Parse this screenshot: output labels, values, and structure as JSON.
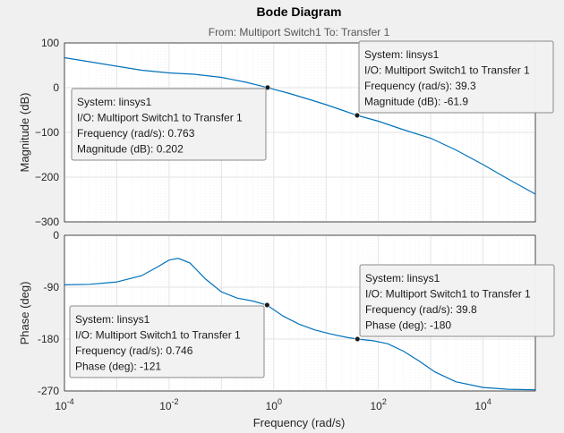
{
  "colors": {
    "curve": "#0072BD",
    "background": "#f0f0f0",
    "axes": "#ffffff"
  },
  "chart_data": {
    "type": "line",
    "title": "Bode Diagram",
    "subtitle": "From: Multiport Switch1  To: Transfer 1",
    "xlabel": "Frequency  (rad/s)",
    "xscale": "log",
    "xlim": [
      0.0001,
      100000
    ],
    "xticks": [
      -4,
      -2,
      0,
      2,
      4
    ],
    "grid": true,
    "plots": [
      {
        "name": "magnitude",
        "ylabel": "Magnitude (dB)",
        "ylim": [
          -300,
          100
        ],
        "yticks": [
          100,
          0,
          -100,
          -200,
          -300
        ],
        "ytick_labels": [
          "100",
          "0",
          "−100",
          "−200",
          "−300"
        ],
        "points": [
          [
            0.0001,
            67
          ],
          [
            0.0003,
            58
          ],
          [
            0.001,
            48
          ],
          [
            0.003,
            39
          ],
          [
            0.01,
            33
          ],
          [
            0.03,
            30
          ],
          [
            0.1,
            23
          ],
          [
            0.3,
            12
          ],
          [
            0.763,
            0.202
          ],
          [
            2,
            -13
          ],
          [
            5,
            -27
          ],
          [
            10,
            -38
          ],
          [
            20,
            -50
          ],
          [
            39.3,
            -61.9
          ],
          [
            100,
            -75
          ],
          [
            300,
            -94
          ],
          [
            1000,
            -113
          ],
          [
            3000,
            -139
          ],
          [
            10000,
            -172
          ],
          [
            30000,
            -204
          ],
          [
            100000,
            -238
          ]
        ]
      },
      {
        "name": "phase",
        "ylabel": "Phase (deg)",
        "ylim": [
          -270,
          0
        ],
        "yticks": [
          0,
          -90,
          -180,
          -270
        ],
        "ytick_labels": [
          "0",
          "-90",
          "-180",
          "-270"
        ],
        "points": [
          [
            0.0001,
            -86
          ],
          [
            0.0003,
            -85
          ],
          [
            0.001,
            -81
          ],
          [
            0.003,
            -70
          ],
          [
            0.006,
            -55
          ],
          [
            0.01,
            -43
          ],
          [
            0.015,
            -40
          ],
          [
            0.025,
            -48
          ],
          [
            0.05,
            -76
          ],
          [
            0.1,
            -98
          ],
          [
            0.2,
            -109
          ],
          [
            0.4,
            -114
          ],
          [
            0.746,
            -121
          ],
          [
            1.5,
            -140
          ],
          [
            3,
            -154
          ],
          [
            6,
            -164
          ],
          [
            12,
            -171
          ],
          [
            25,
            -177
          ],
          [
            39.8,
            -180
          ],
          [
            80,
            -183
          ],
          [
            150,
            -188
          ],
          [
            300,
            -201
          ],
          [
            600,
            -218
          ],
          [
            1200,
            -237
          ],
          [
            3000,
            -254
          ],
          [
            10000,
            -264
          ],
          [
            30000,
            -267
          ],
          [
            100000,
            -268
          ]
        ]
      }
    ],
    "datatips": [
      {
        "plot": 0,
        "x": 0.763,
        "y": 0.202,
        "lines": [
          "System: linsys1",
          "I/O: Multiport Switch1 to Transfer 1",
          "Frequency (rad/s): 0.763",
          "Magnitude (dB): 0.202"
        ]
      },
      {
        "plot": 0,
        "x": 39.3,
        "y": -61.9,
        "lines": [
          "System: linsys1",
          "I/O: Multiport Switch1 to Transfer 1",
          "Frequency (rad/s): 39.3",
          "Magnitude (dB): -61.9"
        ]
      },
      {
        "plot": 1,
        "x": 0.746,
        "y": -121,
        "lines": [
          "System: linsys1",
          "I/O: Multiport Switch1 to Transfer 1",
          "Frequency (rad/s): 0.746",
          "Phase (deg): -121"
        ]
      },
      {
        "plot": 1,
        "x": 39.8,
        "y": -180,
        "lines": [
          "System: linsys1",
          "I/O: Multiport Switch1 to Transfer 1",
          "Frequency (rad/s): 39.8",
          "Phase (deg): -180"
        ]
      }
    ]
  }
}
